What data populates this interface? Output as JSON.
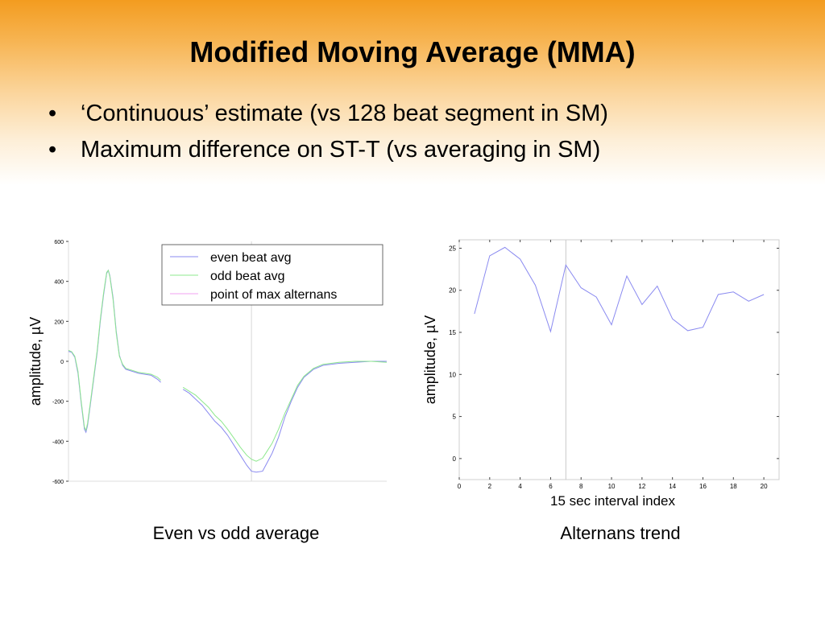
{
  "slide": {
    "title": "Modified Moving Average (MMA)",
    "bullets": [
      "‘Continuous’ estimate (vs 128 beat segment in SM)",
      "Maximum difference on ST-T (vs averaging in SM)"
    ],
    "bullet_glyph": "•",
    "captions": {
      "left": "Even vs odd average",
      "right": "Alternans trend"
    },
    "colors": {
      "header_orange": "#f39c1f",
      "even_series": "#8a8af0",
      "odd_series": "#8ee88e",
      "max_point": "#f0a0f0"
    }
  },
  "chart_data": [
    {
      "type": "line",
      "title": "",
      "xlabel": "",
      "ylabel": "amplitude, µV",
      "ylim": [
        -600,
        600
      ],
      "yticks": [
        600,
        400,
        200,
        0,
        -200,
        -400,
        -600
      ],
      "xlim": [
        0,
        100
      ],
      "x_tick_labels_visible": false,
      "legend_position": "top-right",
      "legend": [
        "even beat avg",
        "odd beat avg",
        "point of max alternans"
      ],
      "max_alternans_x": 57.5,
      "series": [
        {
          "name": "even beat avg",
          "color": "#8a8af0",
          "segments": [
            [
              [
                0,
                50
              ],
              [
                1,
                45
              ],
              [
                2,
                20
              ],
              [
                3,
                -60
              ],
              [
                4,
                -210
              ],
              [
                5,
                -340
              ],
              [
                5.5,
                -355
              ],
              [
                6,
                -320
              ],
              [
                7,
                -200
              ],
              [
                8,
                -80
              ],
              [
                9,
                40
              ],
              [
                10,
                200
              ],
              [
                11,
                330
              ],
              [
                12,
                440
              ],
              [
                12.5,
                455
              ],
              [
                13,
                430
              ],
              [
                14,
                320
              ],
              [
                15,
                150
              ],
              [
                16,
                30
              ],
              [
                17,
                -20
              ],
              [
                18,
                -40
              ],
              [
                20,
                -50
              ],
              [
                22,
                -60
              ],
              [
                24,
                -65
              ],
              [
                26,
                -70
              ],
              [
                28,
                -90
              ],
              [
                29,
                -105
              ]
            ],
            [
              [
                36,
                -140
              ],
              [
                38,
                -160
              ],
              [
                40,
                -190
              ],
              [
                42,
                -220
              ],
              [
                44,
                -260
              ],
              [
                46,
                -300
              ],
              [
                48,
                -330
              ],
              [
                50,
                -370
              ],
              [
                52,
                -420
              ],
              [
                54,
                -470
              ],
              [
                56,
                -520
              ],
              [
                57.5,
                -550
              ],
              [
                59,
                -555
              ],
              [
                61,
                -550
              ],
              [
                62,
                -520
              ],
              [
                64,
                -460
              ],
              [
                66,
                -380
              ],
              [
                68,
                -280
              ],
              [
                70,
                -200
              ],
              [
                72,
                -130
              ],
              [
                74,
                -80
              ],
              [
                77,
                -40
              ],
              [
                80,
                -20
              ],
              [
                85,
                -10
              ],
              [
                90,
                -5
              ],
              [
                95,
                0
              ],
              [
                100,
                0
              ]
            ]
          ]
        },
        {
          "name": "odd beat avg",
          "color": "#8ee88e",
          "segments": [
            [
              [
                0,
                55
              ],
              [
                1,
                48
              ],
              [
                2,
                25
              ],
              [
                3,
                -50
              ],
              [
                4,
                -200
              ],
              [
                5,
                -330
              ],
              [
                5.5,
                -345
              ],
              [
                6,
                -310
              ],
              [
                7,
                -190
              ],
              [
                8,
                -70
              ],
              [
                9,
                50
              ],
              [
                10,
                210
              ],
              [
                11,
                340
              ],
              [
                12,
                445
              ],
              [
                12.5,
                455
              ],
              [
                13,
                425
              ],
              [
                14,
                310
              ],
              [
                15,
                140
              ],
              [
                16,
                25
              ],
              [
                17,
                -15
              ],
              [
                18,
                -35
              ],
              [
                20,
                -45
              ],
              [
                22,
                -55
              ],
              [
                24,
                -60
              ],
              [
                26,
                -65
              ],
              [
                28,
                -80
              ],
              [
                29,
                -95
              ]
            ],
            [
              [
                36,
                -130
              ],
              [
                38,
                -150
              ],
              [
                40,
                -170
              ],
              [
                42,
                -200
              ],
              [
                44,
                -230
              ],
              [
                46,
                -270
              ],
              [
                48,
                -300
              ],
              [
                50,
                -340
              ],
              [
                52,
                -385
              ],
              [
                54,
                -430
              ],
              [
                56,
                -470
              ],
              [
                57.5,
                -490
              ],
              [
                59,
                -500
              ],
              [
                61,
                -485
              ],
              [
                62,
                -460
              ],
              [
                64,
                -410
              ],
              [
                66,
                -340
              ],
              [
                68,
                -260
              ],
              [
                70,
                -190
              ],
              [
                72,
                -120
              ],
              [
                74,
                -75
              ],
              [
                77,
                -35
              ],
              [
                80,
                -15
              ],
              [
                85,
                -5
              ],
              [
                90,
                0
              ],
              [
                95,
                0
              ],
              [
                100,
                -5
              ]
            ]
          ]
        }
      ]
    },
    {
      "type": "line",
      "title": "",
      "xlabel": "15 sec interval index",
      "ylabel": "amplitude, µV",
      "xlim": [
        0,
        21
      ],
      "ylim": [
        -2.5,
        26
      ],
      "xticks": [
        0,
        2,
        4,
        6,
        8,
        10,
        12,
        14,
        16,
        18,
        20
      ],
      "yticks": [
        0,
        5,
        10,
        15,
        20,
        25
      ],
      "vline_x": 7,
      "series": [
        {
          "name": "",
          "color": "#8a8af0",
          "x": [
            1,
            2,
            3,
            4,
            5,
            6,
            7,
            8,
            9,
            10,
            11,
            12,
            13,
            14,
            15,
            16,
            17,
            18,
            19,
            20
          ],
          "values": [
            17.2,
            24.1,
            25.1,
            23.7,
            20.6,
            15.1,
            23.0,
            20.3,
            19.2,
            15.9,
            21.7,
            18.3,
            20.5,
            16.6,
            15.2,
            15.6,
            19.5,
            19.8,
            18.7,
            19.5
          ]
        }
      ]
    }
  ]
}
